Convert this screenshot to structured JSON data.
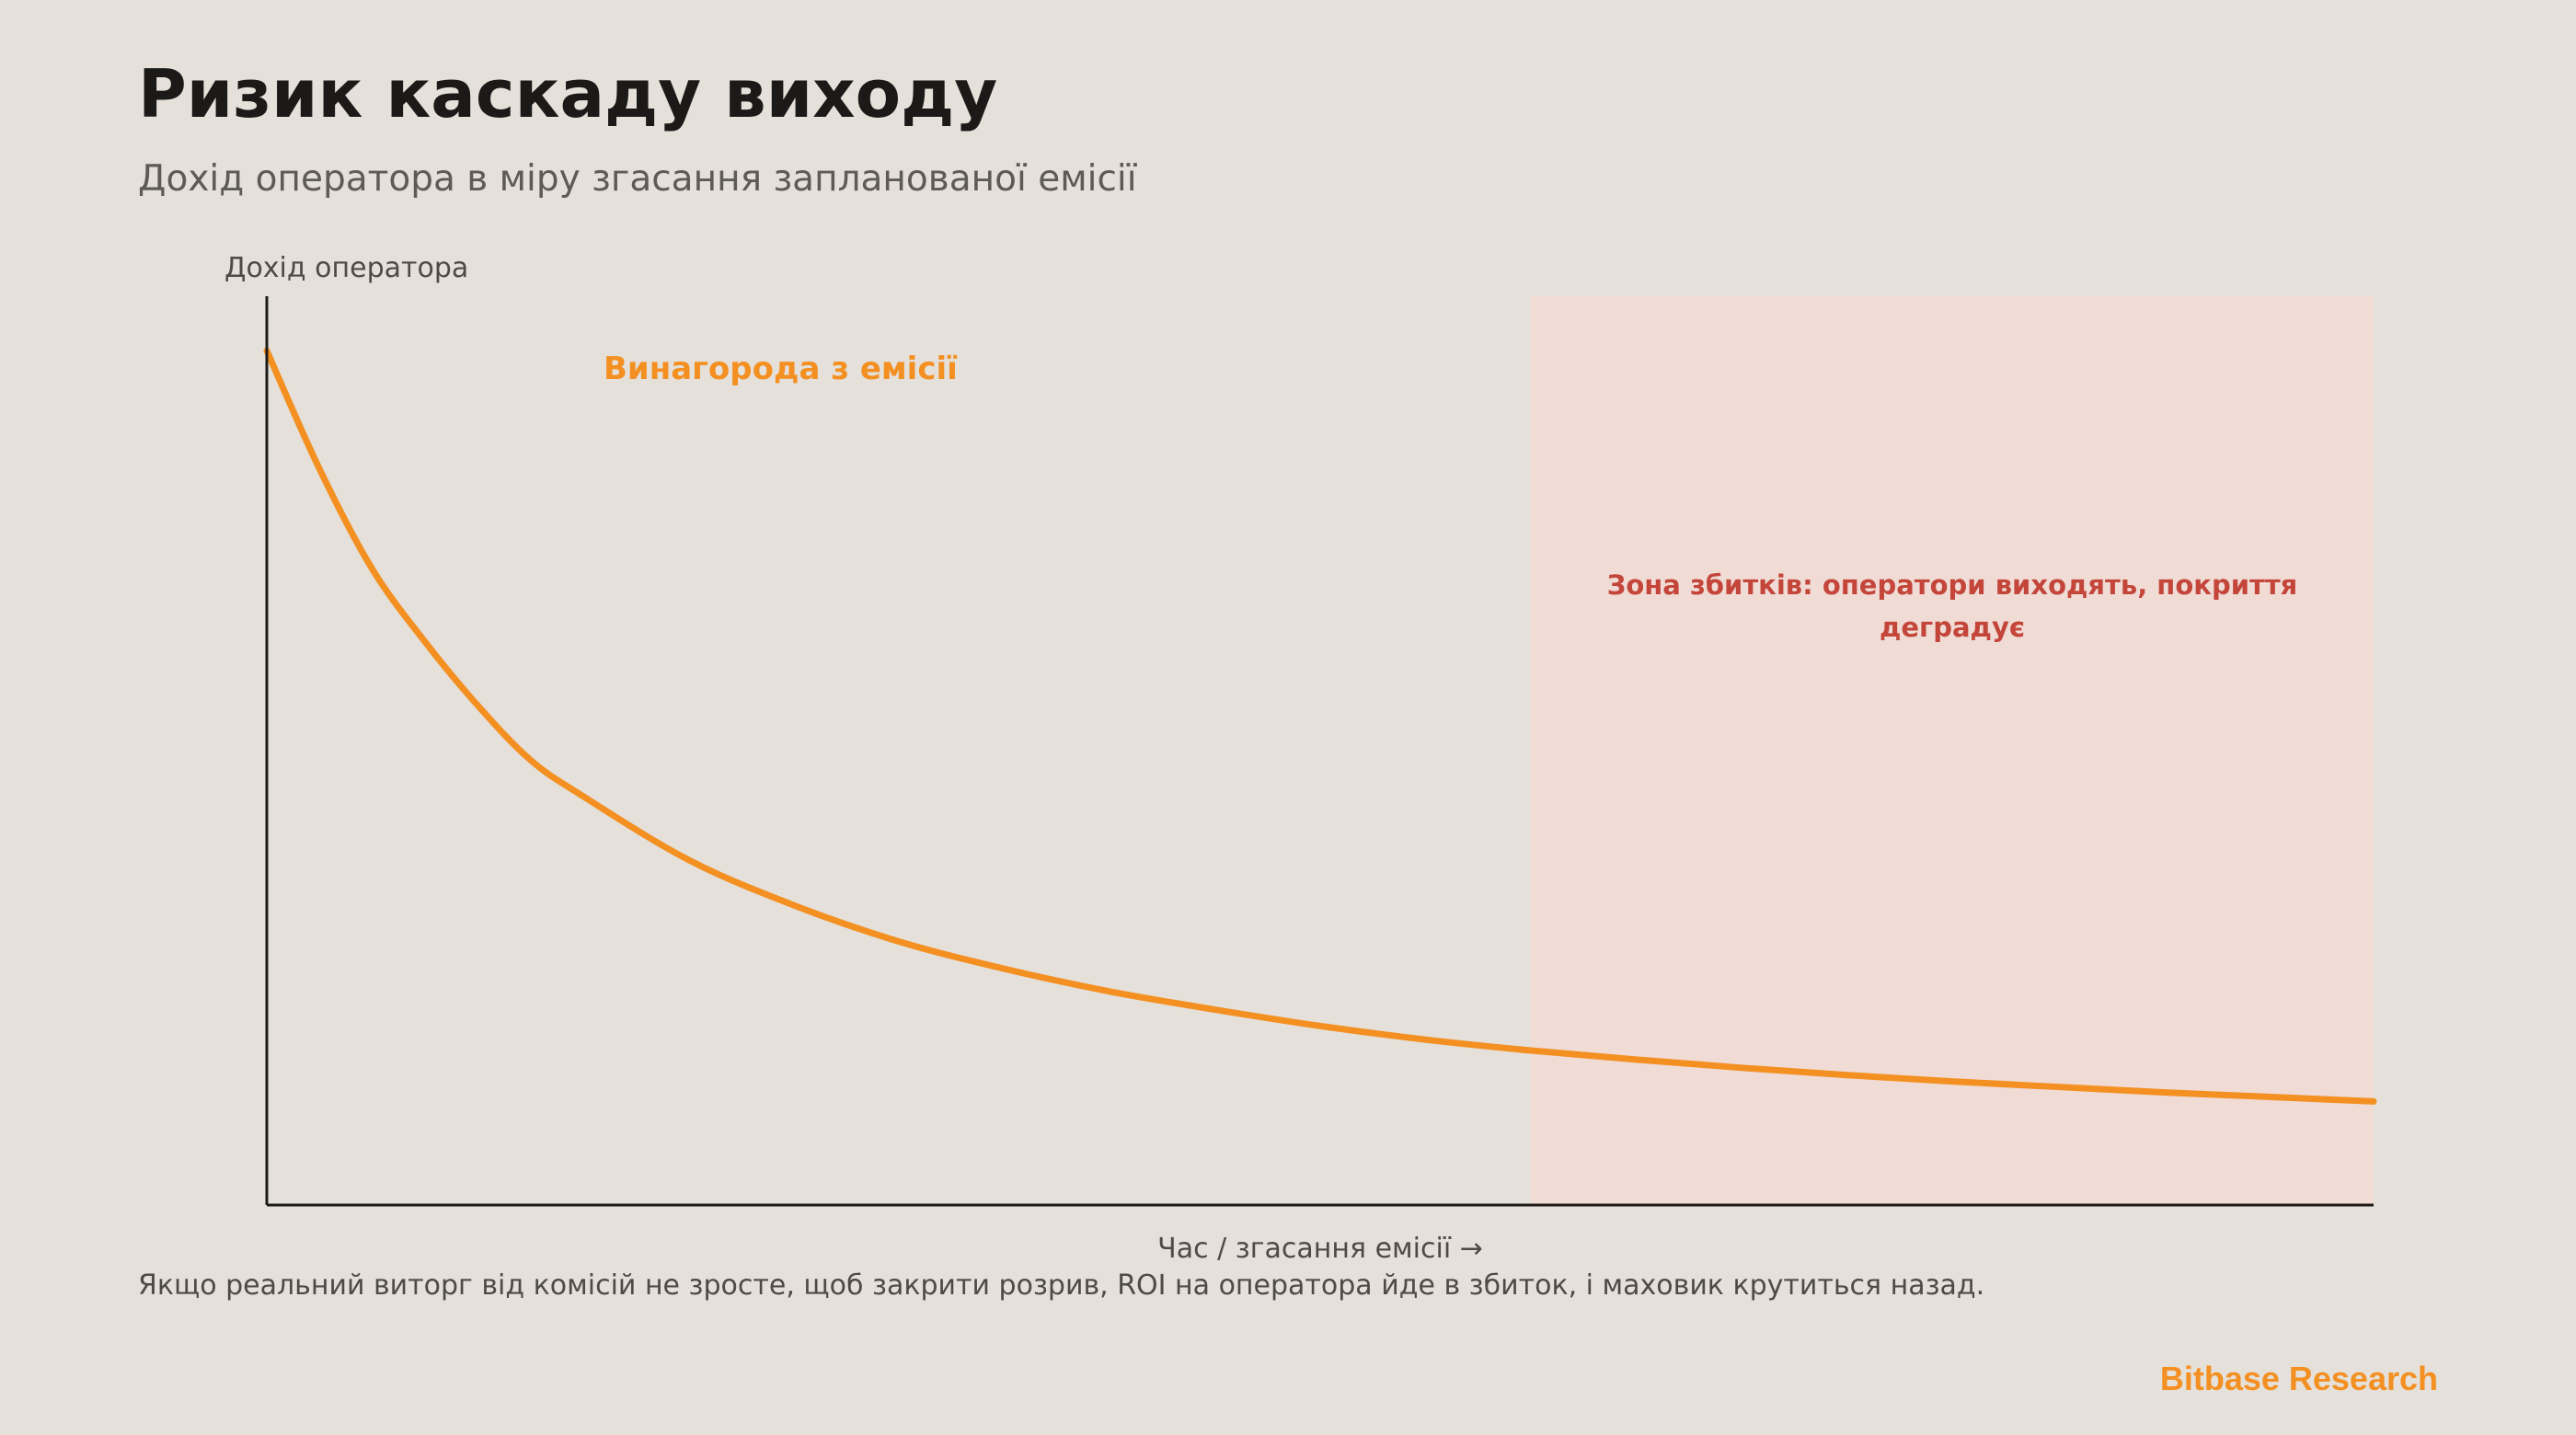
{
  "header": {
    "title": "Ризик каскаду виходу",
    "subtitle": "Дохід оператора в міру згасання запланованої емісії"
  },
  "footer": {
    "note": "Якщо реальний виторг від комісій не зросте, щоб закрити розрив, ROI на оператора йде в збиток, і маховик крутиться назад.",
    "brand": "Bitbase Research"
  },
  "colors": {
    "background": "#E5E0DA",
    "series": "#F39021",
    "loss_zone_fill": "#F0DBD5",
    "loss_zone_text": "#C4463A",
    "axis": "#1B1A18"
  },
  "chart_data": {
    "type": "line",
    "title": "",
    "xlabel": "Час / згасання емісії →",
    "ylabel": "Дохід оператора",
    "xlim": [
      0,
      1
    ],
    "ylim": [
      0,
      1
    ],
    "grid": false,
    "ticks": "none",
    "series": [
      {
        "name": "Винагорода з емісії",
        "x": [
          0,
          0.025,
          0.05,
          0.075,
          0.1,
          0.125,
          0.15,
          0.2,
          0.25,
          0.3,
          0.35,
          0.4,
          0.45,
          0.5,
          0.55,
          0.6,
          0.65,
          0.7,
          0.75,
          0.8,
          0.85,
          0.9,
          0.95,
          1.0
        ],
        "y": [
          0.94,
          0.81,
          0.7,
          0.62,
          0.55,
          0.49,
          0.45,
          0.38,
          0.33,
          0.29,
          0.26,
          0.235,
          0.215,
          0.197,
          0.182,
          0.17,
          0.16,
          0.151,
          0.143,
          0.136,
          0.13,
          0.124,
          0.119,
          0.114
        ]
      }
    ],
    "regions": [
      {
        "label": "Зона збитків: оператори виходять, покриття деградує",
        "label_lines": [
          "Зона збитків: оператори виходять, покриття",
          "деградує"
        ],
        "x_start": 0.6,
        "x_end": 1.0
      }
    ]
  }
}
